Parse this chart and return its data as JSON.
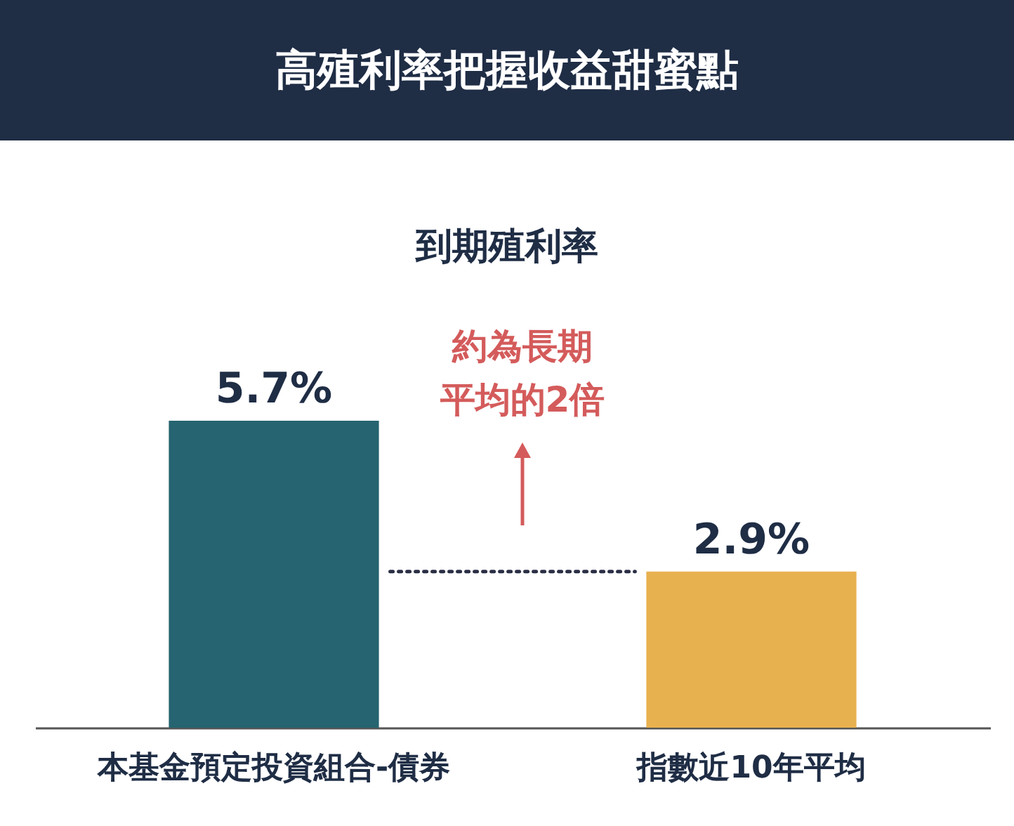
{
  "chart_data": {
    "type": "bar",
    "title": "高殖利率把握收益甜蜜點",
    "subtitle": "到期殖利率",
    "categories": [
      "本基金預定投資組合-債券",
      "指數近10年平均"
    ],
    "values": [
      5.7,
      2.9
    ],
    "colors": [
      "#256470",
      "#e8b14f"
    ],
    "value_labels": [
      "5.7%",
      "2.9%"
    ],
    "ref_lines": [
      {
        "axis": "y",
        "value": 2.9,
        "line_style": "dotted",
        "color": "#2b2f45"
      }
    ],
    "annotations": [
      "約為長期平均的2倍"
    ]
  }
}
